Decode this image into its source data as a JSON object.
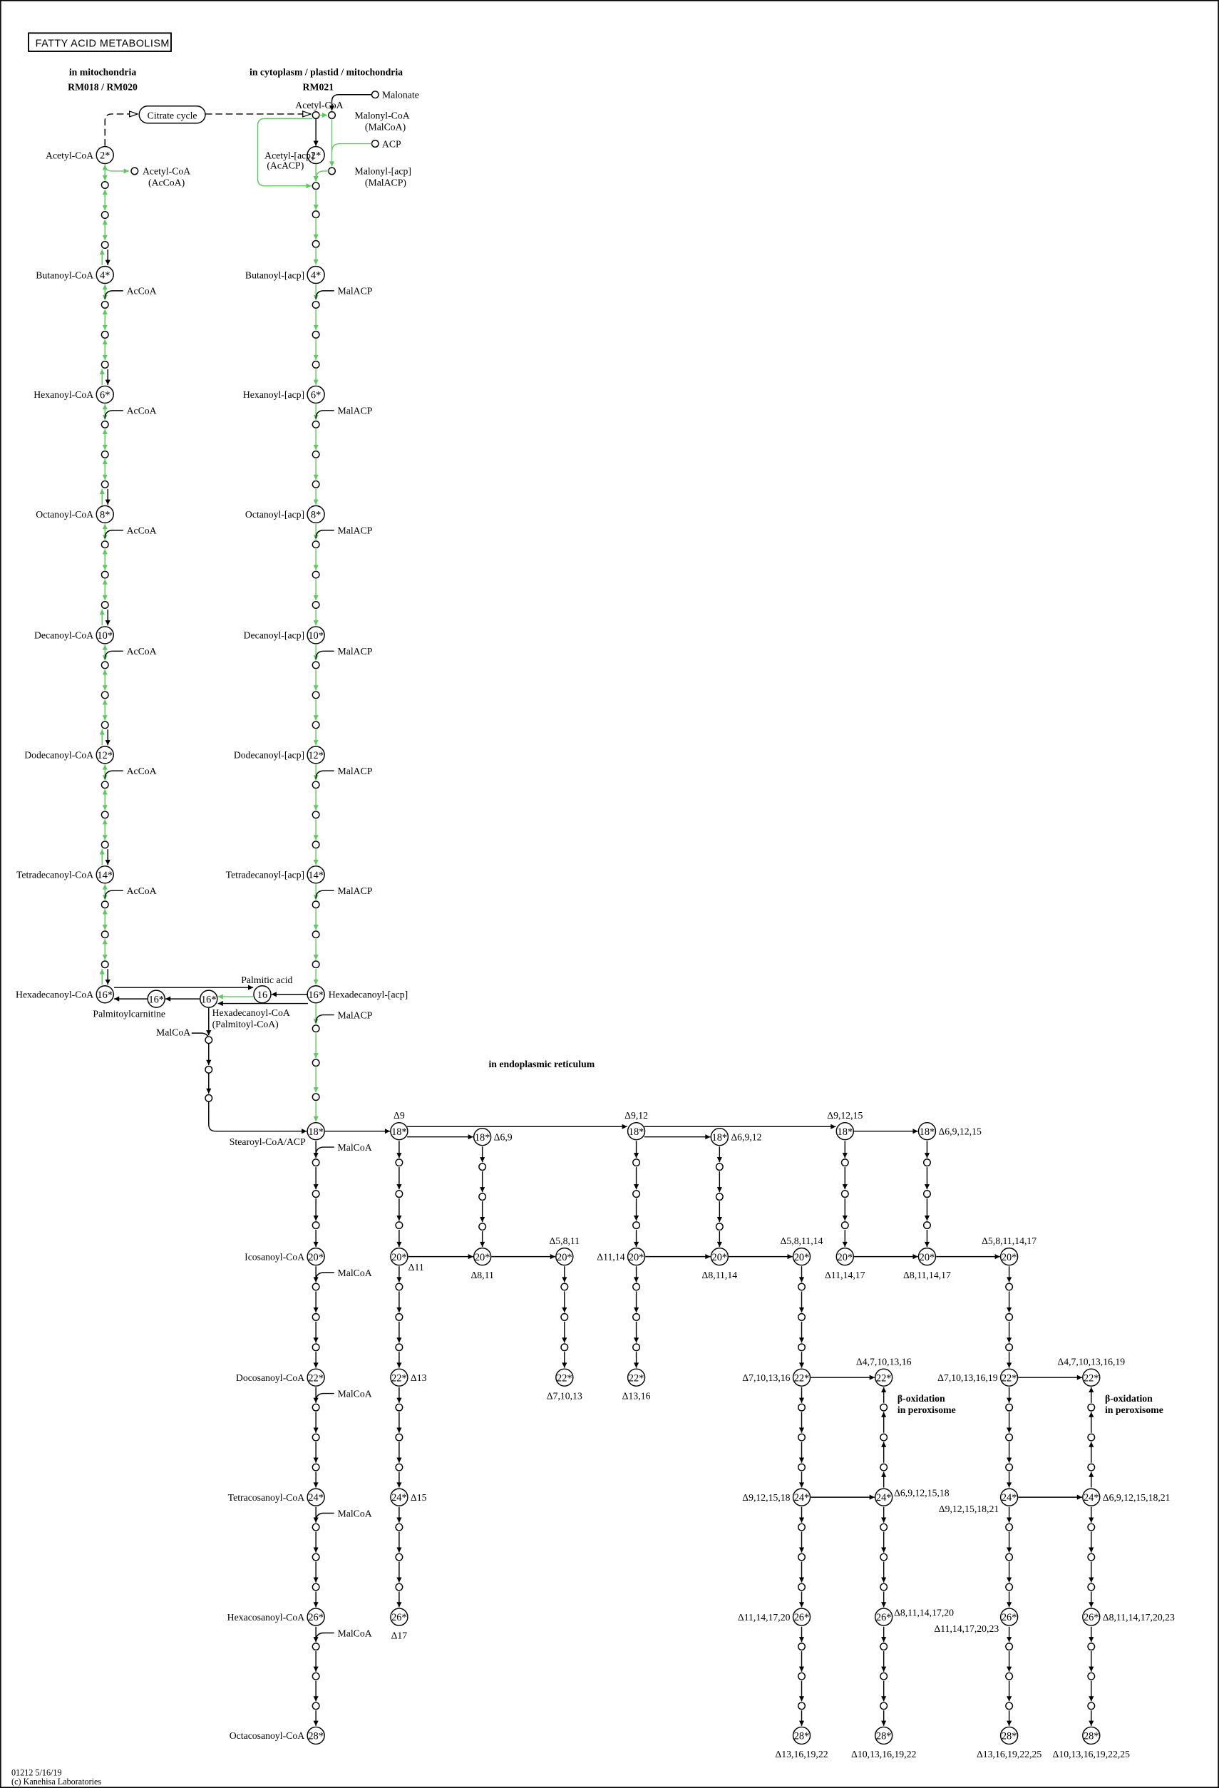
{
  "title": "FATTY ACID METABOLISM",
  "headers": {
    "mitochondria": "in mitochondria",
    "mitochondria_modules": "RM018 / RM020",
    "cytoplasm": "in cytoplasm / plastid / mitochondria",
    "cytoplasm_modules": "RM021",
    "er": "in endoplasmic reticulum"
  },
  "colors": {
    "green": "#5fc85f",
    "black": "#000000"
  },
  "top": {
    "citrate_cycle": "Citrate cycle",
    "acetyl_coa": "Acetyl-CoA",
    "malonyl_coa": "Malonyl-CoA",
    "malcoa_abbr": "(MalCoA)",
    "malonate": "Malonate",
    "acp": "ACP",
    "malonyl_acp": "Malonyl-[acp]",
    "malacp_abbr": "(MalACP)"
  },
  "left_column": {
    "side_label": "AcCoA",
    "branch": {
      "name": "Acetyl-CoA",
      "abbr": "(AcCoA)"
    },
    "nodes": [
      {
        "num": "2*",
        "name": "Acetyl-CoA"
      },
      {
        "num": "4*",
        "name": "Butanoyl-CoA"
      },
      {
        "num": "6*",
        "name": "Hexanoyl-CoA"
      },
      {
        "num": "8*",
        "name": "Octanoyl-CoA"
      },
      {
        "num": "10*",
        "name": "Decanoyl-CoA"
      },
      {
        "num": "12*",
        "name": "Dodecanoyl-CoA"
      },
      {
        "num": "14*",
        "name": "Tetradecanoyl-CoA"
      },
      {
        "num": "16*",
        "name": "Hexadecanoyl-CoA"
      }
    ]
  },
  "middle_column": {
    "nodes": [
      {
        "num": "2*",
        "name": "Acetyl-[acp]",
        "abbr": "(AcACP)",
        "side": ""
      },
      {
        "num": "4*",
        "name": "Butanoyl-[acp]",
        "side": "MalACP"
      },
      {
        "num": "6*",
        "name": "Hexanoyl-[acp]",
        "side": "MalACP"
      },
      {
        "num": "8*",
        "name": "Octanoyl-[acp]",
        "side": "MalACP"
      },
      {
        "num": "10*",
        "name": "Decanoyl-[acp]",
        "side": "MalACP"
      },
      {
        "num": "12*",
        "name": "Dodecanoyl-[acp]",
        "side": "MalACP"
      },
      {
        "num": "14*",
        "name": "Tetradecanoyl-[acp]",
        "side": "MalACP"
      },
      {
        "num": "16*",
        "name": "Hexadecanoyl-[acp]",
        "side": "MalACP"
      },
      {
        "num": "18*",
        "name": "Stearoyl-CoA/ACP",
        "side": "MalCoA"
      },
      {
        "num": "20*",
        "name": "Icosanoyl-CoA",
        "side": "MalCoA"
      },
      {
        "num": "22*",
        "name": "Docosanoyl-CoA",
        "side": "MalCoA"
      },
      {
        "num": "24*",
        "name": "Tetracosanoyl-CoA",
        "side": "MalCoA"
      },
      {
        "num": "26*",
        "name": "Hexacosanoyl-CoA",
        "side": "MalCoA"
      },
      {
        "num": "28*",
        "name": "Octacosanoyl-CoA",
        "side": ""
      }
    ]
  },
  "palmitate": {
    "palmitoylcarnitine_num": "16*",
    "palmitoylcarnitine": "Palmitoylcarnitine",
    "hexadecanoyl_coa_num": "16*",
    "hexadecanoyl_coa": "Hexadecanoyl-CoA",
    "hexadecanoyl_coa_abbr": "(Palmitoyl-CoA)",
    "palmitic_num": "16",
    "palmitic_acid": "Palmitic acid",
    "malcoa": "MalCoA"
  },
  "er": {
    "beta_oxidation": [
      "β-oxidation",
      "in peroxisome"
    ],
    "columns": [
      {
        "nodes": [
          {
            "num": "18*",
            "delta": "Δ9"
          },
          {
            "num": "20*",
            "delta": "Δ11"
          },
          {
            "num": "22*",
            "delta": "Δ13"
          },
          {
            "num": "24*",
            "delta": "Δ15"
          },
          {
            "num": "26*",
            "delta": "Δ17"
          }
        ]
      },
      {
        "nodes": [
          {
            "num": "18*",
            "delta": "Δ6,9"
          },
          {
            "num": "20*",
            "delta": "Δ8,11"
          }
        ]
      },
      {
        "nodes": [
          {
            "num": "20*",
            "delta": "Δ5,8,11"
          },
          {
            "num": "22*",
            "delta": "Δ7,10,13"
          }
        ]
      },
      {
        "nodes": [
          {
            "num": "18*",
            "delta": "Δ9,12"
          },
          {
            "num": "20*",
            "delta": "Δ11,14"
          },
          {
            "num": "22*",
            "delta": "Δ13,16"
          }
        ]
      },
      {
        "nodes": [
          {
            "num": "18*",
            "delta": "Δ6,9,12"
          },
          {
            "num": "20*",
            "delta": "Δ8,11,14"
          }
        ]
      },
      {
        "nodes": [
          {
            "num": "20*",
            "delta": "Δ5,8,11,14"
          },
          {
            "num": "22*",
            "delta": "Δ7,10,13,16"
          },
          {
            "num": "24*",
            "delta": "Δ9,12,15,18"
          },
          {
            "num": "26*",
            "delta": "Δ11,14,17,20"
          },
          {
            "num": "28*",
            "delta": "Δ13,16,19,22"
          }
        ]
      },
      {
        "nodes": [
          {
            "num": "22*",
            "delta": "Δ4,7,10,13,16"
          },
          {
            "num": "24*",
            "delta": "Δ6,9,12,15,18"
          },
          {
            "num": "26*",
            "delta": "Δ8,11,14,17,20"
          },
          {
            "num": "28*",
            "delta": "Δ10,13,16,19,22"
          }
        ]
      },
      {
        "nodes": [
          {
            "num": "18*",
            "delta": "Δ9,12,15"
          },
          {
            "num": "20*",
            "delta": "Δ11,14,17"
          }
        ]
      },
      {
        "nodes": [
          {
            "num": "18*",
            "delta": "Δ6,9,12,15"
          },
          {
            "num": "20*",
            "delta": "Δ8,11,14,17"
          }
        ]
      },
      {
        "nodes": [
          {
            "num": "20*",
            "delta": "Δ5,8,11,14,17"
          },
          {
            "num": "22*",
            "delta": "Δ7,10,13,16,19"
          },
          {
            "num": "24*",
            "delta": "Δ9,12,15,18,21"
          },
          {
            "num": "26*",
            "delta": "Δ11,14,17,20,23"
          },
          {
            "num": "28*",
            "delta": "Δ13,16,19,22,25"
          }
        ]
      },
      {
        "nodes": [
          {
            "num": "22*",
            "delta": "Δ4,7,10,13,16,19"
          },
          {
            "num": "24*",
            "delta": "Δ6,9,12,15,18,21"
          },
          {
            "num": "26*",
            "delta": "Δ8,11,14,17,20,23"
          },
          {
            "num": "28*",
            "delta": "Δ10,13,16,19,22,25"
          }
        ]
      }
    ]
  },
  "footer": {
    "map_id": "01212 5/16/19",
    "copyright": "(c) Kanehisa Laboratories"
  }
}
